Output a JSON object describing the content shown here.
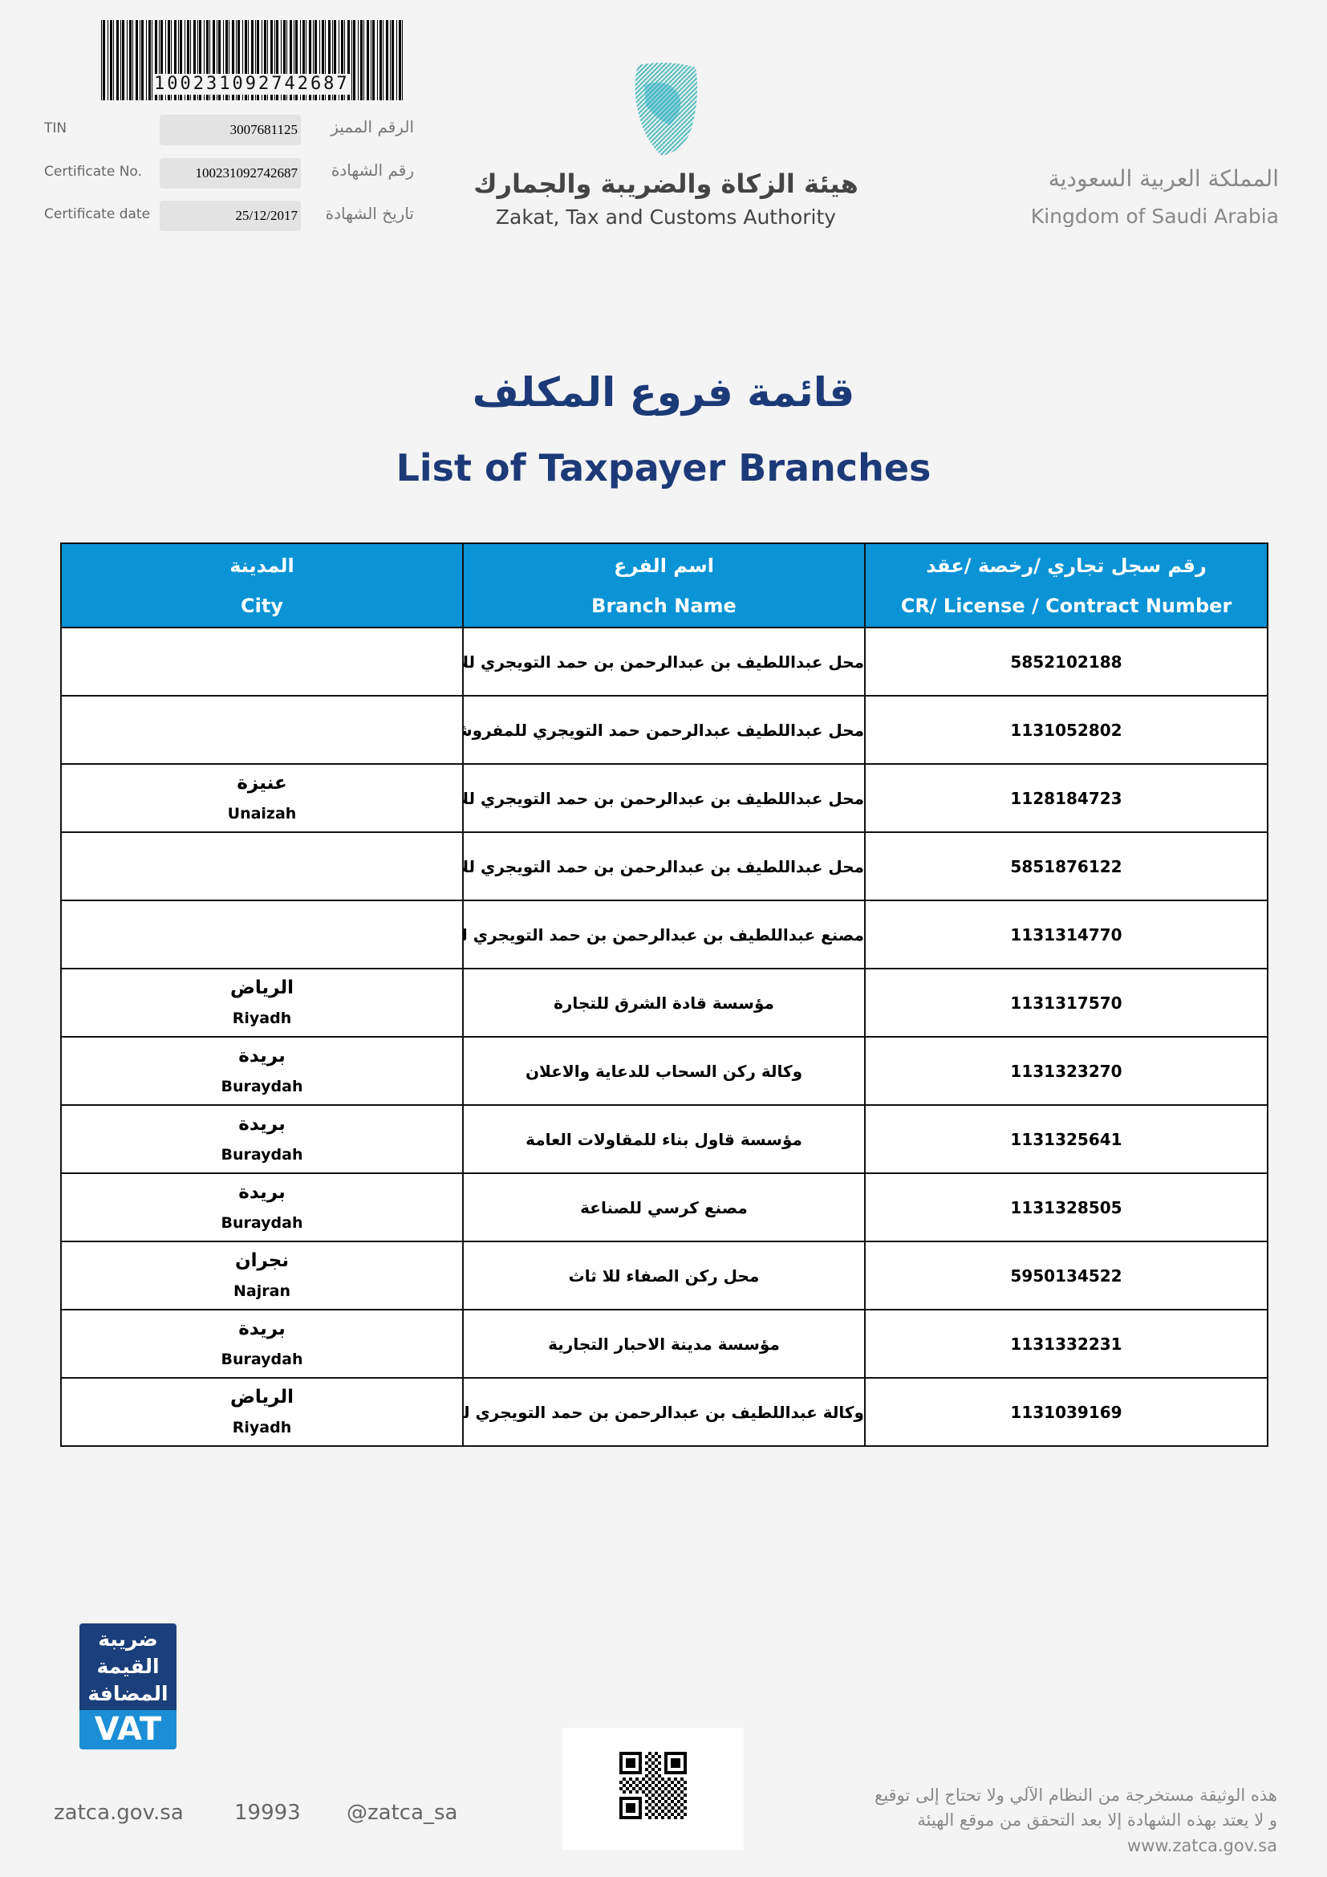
{
  "barcode": {
    "number": "100231092742687"
  },
  "certificate_fields": [
    {
      "label_en": "TIN",
      "value": "3007681125",
      "label_ar": "الرقم المميز"
    },
    {
      "label_en": "Certificate No.",
      "value": "100231092742687",
      "label_ar": "رقم الشهادة"
    },
    {
      "label_en": "Certificate date",
      "value": "25/12/2017",
      "label_ar": "تاريخ الشهادة"
    }
  ],
  "authority": {
    "name_ar": "هيئة الزكاة والضريبة والجمارك",
    "name_en": "Zakat, Tax and Customs Authority",
    "logo_colors": [
      "#7fd0b0",
      "#2aa7c9"
    ]
  },
  "kingdom": {
    "name_ar": "المملكة العربية السعودية",
    "name_en": "Kingdom of Saudi Arabia"
  },
  "title": {
    "ar": "قائمة فروع المكلف",
    "en": "List of Taxpayer Branches"
  },
  "table": {
    "header_color": "#0a93d5",
    "headers": {
      "city_ar": "المدينة",
      "city_en": "City",
      "branch_ar": "اسم الفرع",
      "branch_en": "Branch Name",
      "cr_ar": "رقم سجل تجاري /رخصة /عقد",
      "cr_en": "CR/ License / Contract Number"
    },
    "rows": [
      {
        "city_ar": "",
        "city_en": "",
        "branch": "محل عبداللطيف بن عبدالرحمن بن حمد التويجري للأ",
        "cr": "5852102188"
      },
      {
        "city_ar": "",
        "city_en": "",
        "branch": "محل عبداللطيف عبدالرحمن حمد التويجري للمفروشا",
        "cr": "1131052802"
      },
      {
        "city_ar": "عنيزة",
        "city_en": "Unaizah",
        "branch": "محل عبداللطيف بن عبدالرحمن بن حمد التويجري للأ",
        "cr": "1128184723"
      },
      {
        "city_ar": "",
        "city_en": "",
        "branch": "محل عبداللطيف بن عبدالرحمن بن حمد التويجري للأ",
        "cr": "5851876122"
      },
      {
        "city_ar": "",
        "city_en": "",
        "branch": "مصنع عبداللطيف بن عبدالرحمن بن حمد التويجري للص",
        "cr": "1131314770"
      },
      {
        "city_ar": "الرياض",
        "city_en": "Riyadh",
        "branch": "مؤسسة قادة الشرق للتجارة",
        "cr": "1131317570"
      },
      {
        "city_ar": "بريدة",
        "city_en": "Buraydah",
        "branch": "وكالة ركن السحاب للدعاية والاعلان",
        "cr": "1131323270"
      },
      {
        "city_ar": "بريدة",
        "city_en": "Buraydah",
        "branch": "مؤسسة قاول بناء للمقاولات العامة",
        "cr": "1131325641"
      },
      {
        "city_ar": "بريدة",
        "city_en": "Buraydah",
        "branch": "مصنع كرسي للصناعة",
        "cr": "1131328505"
      },
      {
        "city_ar": "نجران",
        "city_en": "Najran",
        "branch": "محل ركن الصفاء للا ثاث",
        "cr": "5950134522"
      },
      {
        "city_ar": "بريدة",
        "city_en": "Buraydah",
        "branch": "مؤسسة مدينة الاحبار التجارية",
        "cr": "1131332231"
      },
      {
        "city_ar": "الرياض",
        "city_en": "Riyadh",
        "branch": "وكالة عبداللطيف بن عبدالرحمن بن حمد التويجري للد",
        "cr": "1131039169"
      }
    ]
  },
  "vat_logo": {
    "ar_lines": [
      "ضريبة",
      "القيمة",
      "المضافة"
    ],
    "en": "VAT"
  },
  "footer": {
    "website": "zatca.gov.sa",
    "phone": "19993",
    "handle": "@zatca_sa",
    "disclaimer": [
      "هذه الوثيقة مستخرجة من النظام الآلي ولا تحتاج إلى توقيع",
      "و لا يعتد بهذه الشهادة إلا بعد التحقق من موقع الهيئة",
      "www.zatca.gov.sa"
    ]
  }
}
